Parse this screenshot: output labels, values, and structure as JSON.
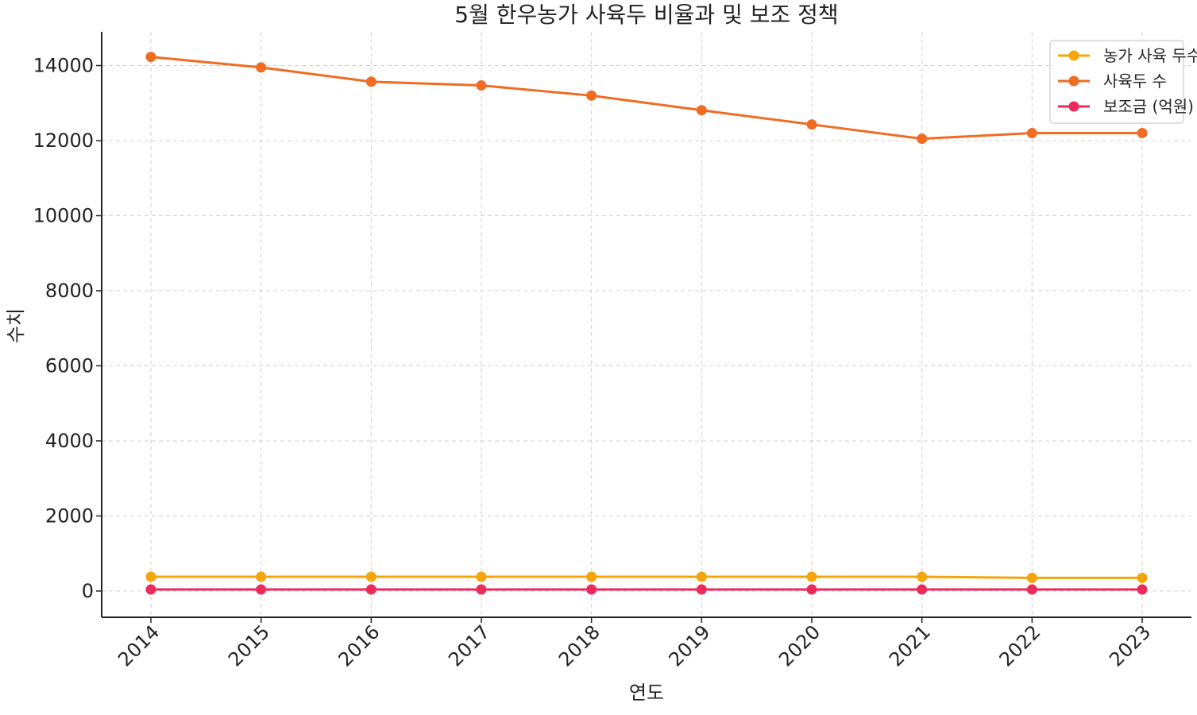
{
  "chart_data": {
    "type": "line",
    "title": "5월 한우농가 사육두 비율과 및 보조 정책",
    "xlabel": "연도",
    "ylabel": "수치",
    "x": [
      "2014",
      "2015",
      "2016",
      "2017",
      "2018",
      "2019",
      "2020",
      "2021",
      "2022",
      "2023"
    ],
    "ylim": [
      -700,
      14900
    ],
    "yticks": [
      0,
      2000,
      4000,
      6000,
      8000,
      10000,
      12000,
      14000
    ],
    "grid": true,
    "legend_position": "top-right",
    "series": [
      {
        "name": "농가 사육 두수",
        "color": "#f5a50c",
        "values": [
          380,
          380,
          380,
          380,
          380,
          380,
          380,
          380,
          350,
          350
        ]
      },
      {
        "name": "사육두 수",
        "color": "#ef6c22",
        "values": [
          14230,
          13950,
          13570,
          13470,
          13200,
          12810,
          12430,
          12050,
          12200,
          12200
        ]
      },
      {
        "name": "보조금 (억원)",
        "color": "#ee2a5b",
        "values": [
          40,
          40,
          40,
          40,
          40,
          40,
          40,
          40,
          40,
          40
        ]
      }
    ]
  }
}
